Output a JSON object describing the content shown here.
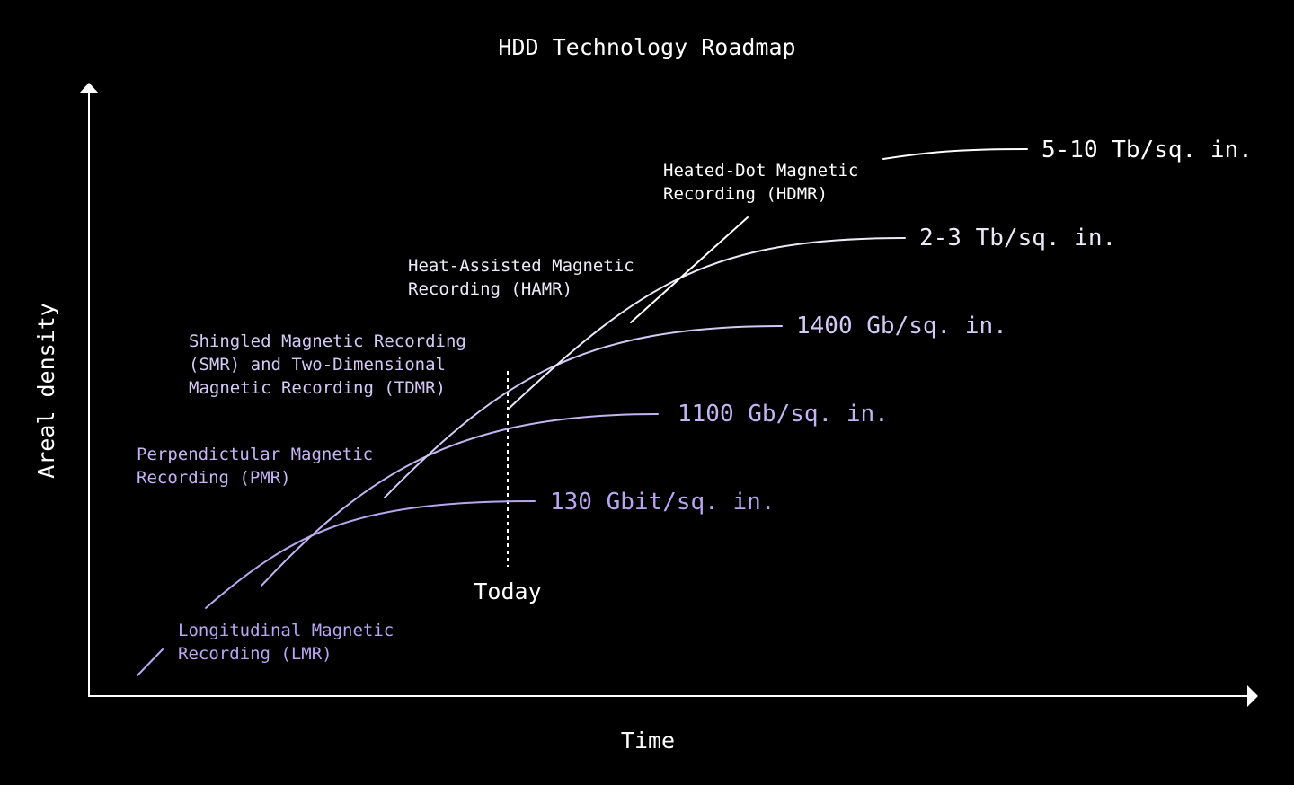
{
  "title": "HDD Technology Roadmap",
  "axes": {
    "x_label": "Time",
    "y_label": "Areal density"
  },
  "today_label": "Today",
  "colors": {
    "background": "#000000",
    "white": "#ffffff",
    "light_lavender": "#e6e1f7",
    "lavender": "#cbbcf2",
    "violet": "#b9a6ee"
  },
  "technologies": [
    {
      "id": "lmr",
      "lines": [
        "Longitudinal Magnetic",
        "Recording (LMR)"
      ],
      "density": "130 Gbit/sq. in.",
      "color": "#b9a6ee"
    },
    {
      "id": "pmr",
      "lines": [
        "Perpendictular Magnetic",
        "Recording (PMR)"
      ],
      "density": "1100 Gb/sq. in.",
      "color": "#c4b4f1"
    },
    {
      "id": "smr-tdmr",
      "lines": [
        "Shingled Magnetic Recording",
        "(SMR) and Two-Dimensional",
        "Magnetic Recording (TDMR)"
      ],
      "density": "1400 Gb/sq. in.",
      "color": "#d3c9f4"
    },
    {
      "id": "hamr",
      "lines": [
        "Heat-Assisted Magnetic",
        "Recording (HAMR)"
      ],
      "density": "2-3 Tb/sq. in.",
      "color": "#ece9f8"
    },
    {
      "id": "hdmr",
      "lines": [
        "Heated-Dot Magnetic",
        "Recording (HDMR)"
      ],
      "density": "5-10 Tb/sq. in.",
      "color": "#ffffff"
    }
  ]
}
